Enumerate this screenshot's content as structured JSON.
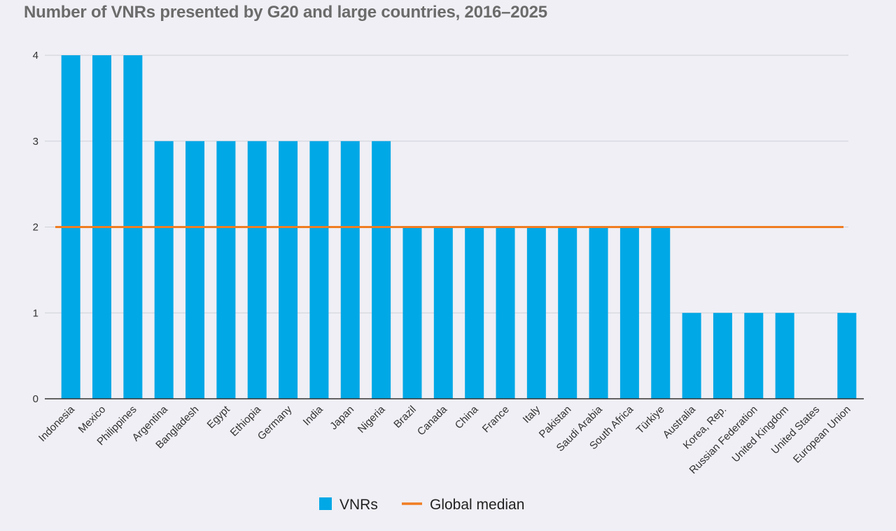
{
  "chart_data": {
    "type": "bar",
    "title": "Number of VNRs presented by G20 and large countries, 2016–2025",
    "xlabel": "",
    "ylabel": "",
    "ylim": [
      0,
      4
    ],
    "yticks": [
      "0",
      "1",
      "2",
      "3",
      "4"
    ],
    "grid": true,
    "legend_position": "bottom-center",
    "categories": [
      "Indonesia",
      "Mexico",
      "Philippines",
      "Argentina",
      "Bangladesh",
      "Egypt",
      "Ethiopia",
      "Germany",
      "India",
      "Japan",
      "Nigeria",
      "Brazil",
      "Canada",
      "China",
      "France",
      "Italy",
      "Pakistan",
      "Saudi Arabia",
      "South Africa",
      "Türkiye",
      "Australia",
      "Korea, Rep.",
      "Russian Federation",
      "United Kingdom",
      "United States",
      "European Union"
    ],
    "series": [
      {
        "name": "VNRs",
        "kind": "bar",
        "color": "#00a8e6",
        "values": [
          4,
          4,
          4,
          3,
          3,
          3,
          3,
          3,
          3,
          3,
          3,
          2,
          2,
          2,
          2,
          2,
          2,
          2,
          2,
          2,
          1,
          1,
          1,
          1,
          0,
          1
        ]
      },
      {
        "name": "Global median",
        "kind": "line",
        "color": "#f07d22",
        "value": 2
      }
    ]
  }
}
